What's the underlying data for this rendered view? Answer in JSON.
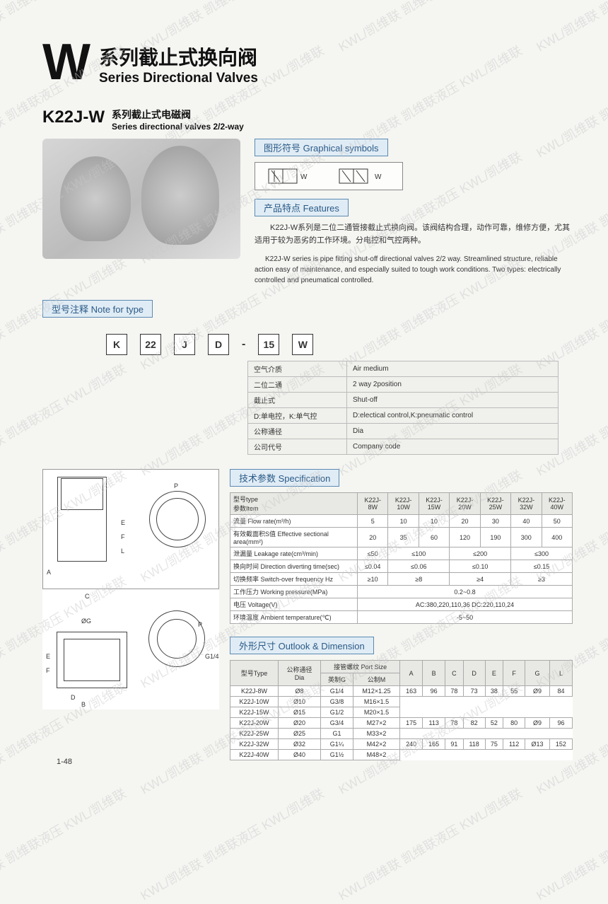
{
  "watermark": "KWL/凯维联   凯维联液压  KWL/凯维联",
  "title": {
    "w": "W",
    "cn": "系列截止式换向阀",
    "en": "Series Directional Valves"
  },
  "subtitle": {
    "model": "K22J-W",
    "cn": "系列截止式电磁阀",
    "en": "Series directional valves 2/2-way"
  },
  "labels": {
    "graphical": "图形符号 Graphical symbols",
    "features": "产品特点 Features",
    "note": "型号注释 Note for type",
    "spec": "技术参数 Specification",
    "outlook": "外形尺寸 Outlook & Dimension"
  },
  "features": {
    "cn": "K22J-W系列是二位二通管接截止式换向阀。该阀结构合理，动作可靠，维修方便，尤其适用于较为恶劣的工作环境。分电控和气控两种。",
    "en": "K22J-W series is pipe fitting shut-off directional valves 2/2 way. Streamlined structure, reliable action easy of maintenance, and especially suited to tough work conditions. Two types: electrically controlled and pneumatical controlled."
  },
  "typecode": [
    "K",
    "22",
    "J",
    "D",
    "15",
    "W"
  ],
  "type_rows": [
    {
      "cn": "空气介质",
      "en": "Air medium"
    },
    {
      "cn": "二位二通",
      "en": "2 way 2position"
    },
    {
      "cn": "截止式",
      "en": "Shut-off"
    },
    {
      "cn": "D:单电控，K:单气控",
      "en": "D:electical control,K:pneumatic control"
    },
    {
      "cn": "公称通径",
      "en": "Dia"
    },
    {
      "cn": "公司代号",
      "en": "Company code"
    }
  ],
  "spec": {
    "header_cn": "型号type",
    "header_item": "参数Item",
    "models": [
      "K22J-8W",
      "K22J-10W",
      "K22J-15W",
      "K22J-20W",
      "K22J-25W",
      "K22J-32W",
      "K22J-40W"
    ],
    "rows": [
      {
        "label": "流量 Flow rate(m³/h)",
        "vals": [
          "5",
          "10",
          "10",
          "20",
          "30",
          "40",
          "50"
        ]
      },
      {
        "label": "有效截面积S值 Effective sectional area(mm²)",
        "vals": [
          "20",
          "35",
          "60",
          "120",
          "190",
          "300",
          "400"
        ]
      },
      {
        "label": "泄漏量 Leakage rate(cm³/min)",
        "vals": [
          "≤50",
          "≤100",
          "",
          "≤200",
          "",
          "≤300",
          ""
        ],
        "spans": [
          1,
          2,
          0,
          2,
          0,
          2,
          0
        ]
      },
      {
        "label": "换向时间 Direction diverting time(sec)",
        "vals": [
          "≤0.04",
          "≤0.06",
          "",
          "≤0.10",
          "",
          "≤0.15",
          ""
        ],
        "spans": [
          1,
          2,
          0,
          2,
          0,
          2,
          0
        ]
      },
      {
        "label": "切换频率 Switch-over frequency Hz",
        "vals": [
          "≥10",
          "≥8",
          "",
          "≥4",
          "",
          "≥3",
          ""
        ],
        "spans": [
          1,
          2,
          0,
          2,
          0,
          2,
          0
        ]
      },
      {
        "label": "工作压力 Working pressure(MPa)",
        "vals": [
          "0.2~0.8"
        ],
        "spans": [
          7
        ]
      },
      {
        "label": "电压 Voltage(V)",
        "vals": [
          "AC:380,220,110,36  DC:220,110,24"
        ],
        "spans": [
          7
        ]
      },
      {
        "label": "环境温度 Ambient temperature(℃)",
        "vals": [
          "-5~50"
        ],
        "spans": [
          7
        ]
      }
    ]
  },
  "dim": {
    "top_headers": [
      "型号Type",
      "公称通径\nDia",
      "接管螺纹 Port Size",
      "A",
      "B",
      "C",
      "D",
      "E",
      "F",
      "G",
      "L"
    ],
    "port_sub": [
      "英制G",
      "公制M"
    ],
    "rows": [
      {
        "m": "K22J-8W",
        "d": "Ø8",
        "g": "G1/4",
        "mm": "M12×1.25",
        "a": "163",
        "b": "96",
        "c": "78",
        "dd": "73",
        "e": "38",
        "f": "55",
        "gg": "Ø9",
        "l": "84",
        "rspan": 3
      },
      {
        "m": "K22J-10W",
        "d": "Ø10",
        "g": "G3/8",
        "mm": "M16×1.5"
      },
      {
        "m": "K22J-15W",
        "d": "Ø15",
        "g": "G1/2",
        "mm": "M20×1.5"
      },
      {
        "m": "K22J-20W",
        "d": "Ø20",
        "g": "G3/4",
        "mm": "M27×2",
        "a": "175",
        "b": "113",
        "c": "78",
        "dd": "82",
        "e": "52",
        "f": "80",
        "gg": "Ø9",
        "l": "96",
        "rspan": 2
      },
      {
        "m": "K22J-25W",
        "d": "Ø25",
        "g": "G1",
        "mm": "M33×2"
      },
      {
        "m": "K22J-32W",
        "d": "Ø32",
        "g": "G1¼",
        "mm": "M42×2",
        "a": "240",
        "b": "165",
        "c": "91",
        "dd": "118",
        "e": "75",
        "f": "112",
        "gg": "Ø13",
        "l": "152",
        "rspan": 2
      },
      {
        "m": "K22J-40W",
        "d": "Ø40",
        "g": "G1½",
        "mm": "M48×2"
      }
    ]
  },
  "pagenum": "1-48"
}
